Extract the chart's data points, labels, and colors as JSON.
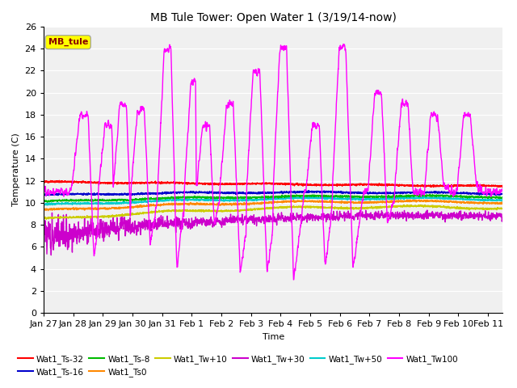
{
  "title": "MB Tule Tower: Open Water 1 (3/19/14-now)",
  "xlabel": "Time",
  "ylabel": "Temperature (C)",
  "ylim": [
    0,
    26
  ],
  "yticks": [
    0,
    2,
    4,
    6,
    8,
    10,
    12,
    14,
    16,
    18,
    20,
    22,
    24,
    26
  ],
  "xlim_days": [
    0,
    15.5
  ],
  "x_tick_labels": [
    "Jan 27",
    "Jan 28",
    "Jan 29",
    "Jan 30",
    "Jan 31",
    "Feb 1",
    "Feb 2",
    "Feb 3",
    "Feb 4",
    "Feb 5",
    "Feb 6",
    "Feb 7",
    "Feb 8",
    "Feb 9",
    "Feb 10",
    "Feb 11"
  ],
  "x_tick_positions": [
    0,
    1,
    2,
    3,
    4,
    5,
    6,
    7,
    8,
    9,
    10,
    11,
    12,
    13,
    14,
    15
  ],
  "legend_label": "MB_tule",
  "legend_box_color": "#FFFF00",
  "legend_text_color": "#880000",
  "series_colors": {
    "Wat1_Ts-32": "#FF0000",
    "Wat1_Ts-16": "#0000CC",
    "Wat1_Ts-8": "#00BB00",
    "Wat1_Ts0": "#FF8800",
    "Wat1_Tw+10": "#CCCC00",
    "Wat1_Tw+30": "#CC00CC",
    "Wat1_Tw+50": "#00CCCC",
    "Wat1_Tw100": "#FF00FF"
  },
  "background_color": "#ffffff",
  "plot_bg_color": "#f0f0f0"
}
